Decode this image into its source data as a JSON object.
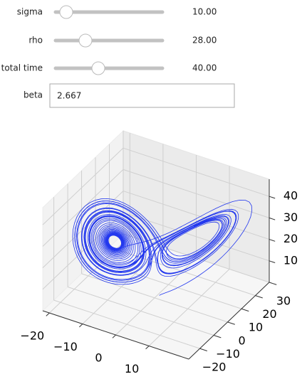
{
  "controls": [
    {
      "label": "sigma",
      "value": 10,
      "value_label": "10.00",
      "range": [
        0,
        100
      ]
    },
    {
      "label": "rho",
      "value": 28,
      "value_label": "28.00",
      "range": [
        0,
        100
      ]
    },
    {
      "label": "total time",
      "value": 40,
      "value_label": "40.00",
      "range": [
        0,
        100
      ]
    },
    {
      "label": "beta",
      "value": 2.667
    }
  ],
  "chart_data": {
    "type": "line3d",
    "color": "#2338ee",
    "grid": true,
    "xlim": [
      -22,
      22
    ],
    "ylim": [
      -28,
      30
    ],
    "zlim": [
      0,
      48
    ],
    "xticks": [
      {
        "value": -20,
        "label": "−20"
      },
      {
        "value": -10,
        "label": "−10"
      },
      0,
      10
    ],
    "yticks": [
      {
        "value": -20,
        "label": "−20"
      },
      {
        "value": -10,
        "label": "−10"
      },
      0,
      10,
      20,
      30
    ],
    "zticks": [
      10,
      20,
      30,
      40
    ]
  }
}
